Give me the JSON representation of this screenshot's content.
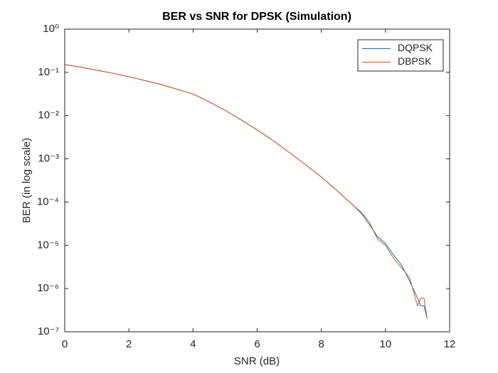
{
  "chart_data": {
    "type": "line",
    "title": "BER vs SNR for DPSK (Simulation)",
    "x_label": "SNR (dB)",
    "y_label": "BER (in log scale)",
    "x": [
      0,
      0.5,
      1,
      1.5,
      2,
      2.5,
      3,
      3.5,
      4,
      4.5,
      5,
      5.5,
      6,
      6.5,
      7,
      7.5,
      8,
      8.5,
      9,
      9.25,
      9.5,
      9.75,
      10,
      10.25,
      10.5,
      10.75,
      11,
      11.1,
      11.2,
      11.3
    ],
    "series": [
      {
        "name": "DQPSK",
        "color": "#0072bd",
        "values": [
          0.151,
          0.132,
          0.112,
          0.0955,
          0.0794,
          0.0646,
          0.0525,
          0.0407,
          0.0316,
          0.0209,
          0.0132,
          0.00794,
          0.00468,
          0.00263,
          0.00141,
          0.000741,
          0.00038,
          0.000182,
          8.3e-05,
          5.5e-05,
          3e-05,
          1.6e-05,
          1.1e-05,
          6e-06,
          3.5e-06,
          1.5e-06,
          6e-07,
          4e-07,
          4e-07,
          2e-07
        ]
      },
      {
        "name": "DBPSK",
        "color": "#d95319",
        "values": [
          0.151,
          0.132,
          0.112,
          0.0955,
          0.0794,
          0.0646,
          0.0525,
          0.0407,
          0.0316,
          0.0209,
          0.0132,
          0.00794,
          0.00468,
          0.00263,
          0.00141,
          0.000741,
          0.00038,
          0.000182,
          8.3e-05,
          5.8e-05,
          3.4e-05,
          1.4e-05,
          1e-05,
          5e-06,
          3e-06,
          1.8e-06,
          4e-07,
          6e-07,
          6e-07,
          2e-07
        ]
      }
    ],
    "xlim": [
      0,
      12
    ],
    "xticks": [
      0,
      2,
      4,
      6,
      8,
      10,
      12
    ],
    "ylim": [
      1e-07,
      1
    ],
    "yscale": "log",
    "yticks": [
      {
        "value": 1e-07,
        "label": "10⁻⁷"
      },
      {
        "value": 1e-06,
        "label": "10⁻⁶"
      },
      {
        "value": 1e-05,
        "label": "10⁻⁵"
      },
      {
        "value": 0.0001,
        "label": "10⁻⁴"
      },
      {
        "value": 0.001,
        "label": "10⁻³"
      },
      {
        "value": 0.01,
        "label": "10⁻²"
      },
      {
        "value": 0.1,
        "label": "10⁻¹"
      },
      {
        "value": 1,
        "label": "10⁰"
      }
    ],
    "grid": false,
    "legend": "northeast"
  }
}
